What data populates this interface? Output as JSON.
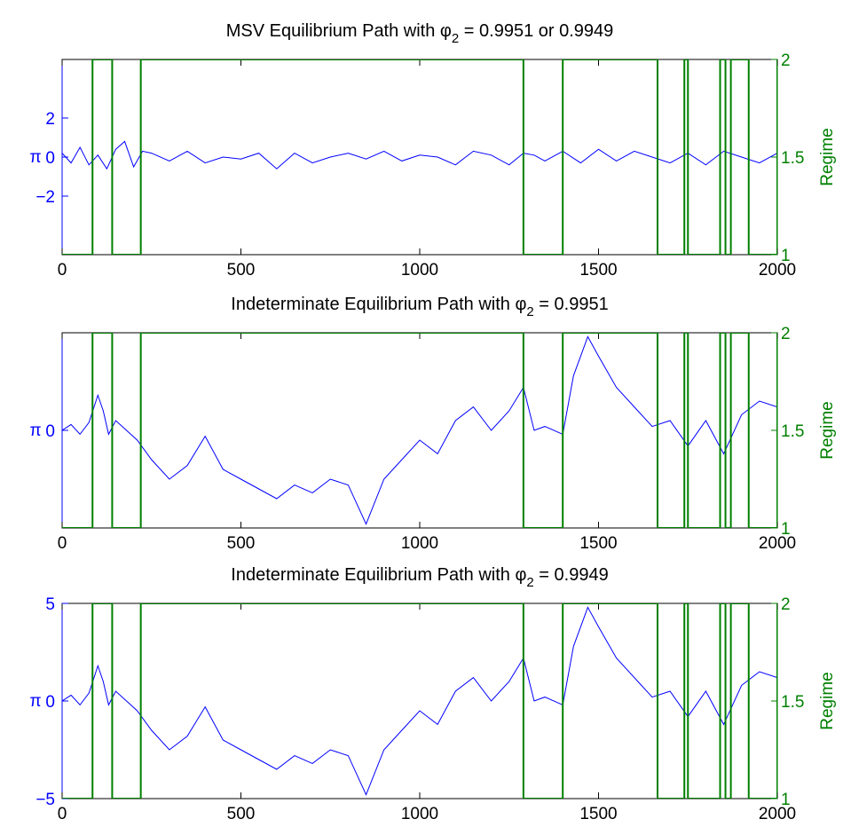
{
  "figure": {
    "colors": {
      "series": "#0000ff",
      "regime": "#008000",
      "axis": "#000000"
    }
  },
  "chart_data": [
    {
      "type": "line",
      "title": {
        "text": "MSV Equilibrium Path with ",
        "sym": "φ",
        "sub": "2",
        "rest": " = 0.9951 or 0.9949"
      },
      "xlim": [
        0,
        2000
      ],
      "x_ticks": [
        "0",
        "500",
        "1000",
        "1500",
        "2000"
      ],
      "ylabel_left": "π",
      "ylim_left": [
        -5,
        5
      ],
      "y_ticks_left": [
        {
          "v": 2,
          "label": "2"
        },
        {
          "v": 0,
          "label": "0"
        },
        {
          "v": -2,
          "label": "−2"
        }
      ],
      "ylabel_right": "Regime",
      "ylim_right": [
        1,
        2
      ],
      "y_ticks_right": [
        {
          "v": 2,
          "label": "2"
        },
        {
          "v": 1.5,
          "label": "1.5"
        },
        {
          "v": 1,
          "label": "1"
        }
      ],
      "series": [
        {
          "axis": "left",
          "style": "line",
          "x": [
            0,
            25,
            50,
            75,
            100,
            125,
            150,
            175,
            200,
            225,
            250,
            300,
            350,
            400,
            450,
            500,
            550,
            600,
            650,
            700,
            750,
            800,
            850,
            900,
            950,
            1000,
            1050,
            1100,
            1150,
            1200,
            1250,
            1290,
            1320,
            1350,
            1400,
            1450,
            1500,
            1550,
            1600,
            1650,
            1700,
            1750,
            1800,
            1850,
            1900,
            1950,
            2000
          ],
          "y": [
            0.2,
            -0.3,
            0.5,
            -0.4,
            0.1,
            -0.6,
            0.4,
            0.8,
            -0.5,
            0.3,
            0.2,
            -0.2,
            0.3,
            -0.3,
            0.0,
            -0.1,
            0.2,
            -0.6,
            0.2,
            -0.3,
            0.0,
            0.2,
            -0.1,
            0.3,
            -0.2,
            0.1,
            0.0,
            -0.4,
            0.3,
            0.1,
            -0.4,
            0.2,
            0.1,
            -0.2,
            0.3,
            -0.3,
            0.4,
            -0.2,
            0.3,
            0.0,
            -0.3,
            0.2,
            -0.4,
            0.3,
            0.0,
            -0.3,
            0.2
          ]
        },
        {
          "axis": "right",
          "style": "step",
          "x": [
            0,
            85,
            140,
            220,
            1290,
            1400,
            1665,
            1740,
            1750,
            1840,
            1855,
            1870,
            1920,
            2000
          ],
          "y": [
            1,
            2,
            1,
            2,
            1,
            2,
            1,
            2,
            1,
            2,
            1,
            2,
            1,
            2
          ]
        }
      ]
    },
    {
      "type": "line",
      "title": {
        "text": "Indeterminate Equilibrium Path with ",
        "sym": "φ",
        "sub": "2",
        "rest": " = 0.9951"
      },
      "xlim": [
        0,
        2000
      ],
      "x_ticks": [
        "0",
        "500",
        "1000",
        "1500",
        "2000"
      ],
      "ylabel_left": "π",
      "ylim_left": [
        -5,
        5
      ],
      "y_ticks_left": [
        {
          "v": 0,
          "label": "0"
        }
      ],
      "ylabel_right": "Regime",
      "ylim_right": [
        1,
        2
      ],
      "y_ticks_right": [
        {
          "v": 2,
          "label": "2"
        },
        {
          "v": 1.5,
          "label": "1.5"
        },
        {
          "v": 1,
          "label": "1"
        }
      ],
      "series": [
        {
          "axis": "left",
          "style": "line",
          "x": [
            0,
            25,
            50,
            75,
            100,
            115,
            130,
            150,
            180,
            210,
            250,
            300,
            350,
            400,
            450,
            500,
            550,
            600,
            650,
            700,
            750,
            800,
            850,
            900,
            950,
            1000,
            1050,
            1100,
            1150,
            1200,
            1250,
            1290,
            1320,
            1350,
            1400,
            1430,
            1470,
            1500,
            1550,
            1600,
            1650,
            1700,
            1750,
            1800,
            1850,
            1900,
            1950,
            2000
          ],
          "y": [
            0.0,
            0.3,
            -0.2,
            0.4,
            1.8,
            1.0,
            -0.2,
            0.5,
            0.0,
            -0.5,
            -1.5,
            -2.5,
            -1.8,
            -0.3,
            -2.0,
            -2.5,
            -3.0,
            -3.5,
            -2.8,
            -3.2,
            -2.5,
            -2.8,
            -4.8,
            -2.5,
            -1.5,
            -0.5,
            -1.2,
            0.5,
            1.2,
            0.0,
            1.0,
            2.2,
            0.0,
            0.2,
            -0.2,
            2.8,
            4.8,
            3.8,
            2.2,
            1.2,
            0.2,
            0.5,
            -0.8,
            0.5,
            -1.2,
            0.8,
            1.5,
            1.2
          ]
        },
        {
          "axis": "right",
          "style": "step",
          "x": [
            0,
            85,
            140,
            220,
            1290,
            1400,
            1665,
            1740,
            1750,
            1840,
            1855,
            1870,
            1920,
            2000
          ],
          "y": [
            1,
            2,
            1,
            2,
            1,
            2,
            1,
            2,
            1,
            2,
            1,
            2,
            1,
            2
          ]
        }
      ]
    },
    {
      "type": "line",
      "title": {
        "text": "Indeterminate Equilibrium Path with ",
        "sym": "φ",
        "sub": "2",
        "rest": " = 0.9949"
      },
      "xlim": [
        0,
        2000
      ],
      "x_ticks": [
        "0",
        "500",
        "1000",
        "1500",
        "2000"
      ],
      "ylabel_left": "π",
      "ylim_left": [
        -5,
        5
      ],
      "y_ticks_left": [
        {
          "v": 5,
          "label": "5"
        },
        {
          "v": 0,
          "label": "0"
        },
        {
          "v": -5,
          "label": "−5"
        }
      ],
      "ylabel_right": "Regime",
      "ylim_right": [
        1,
        2
      ],
      "y_ticks_right": [
        {
          "v": 2,
          "label": "2"
        },
        {
          "v": 1.5,
          "label": "1.5"
        },
        {
          "v": 1,
          "label": "1"
        }
      ],
      "series": [
        {
          "axis": "left",
          "style": "line",
          "x": [
            0,
            25,
            50,
            75,
            100,
            115,
            130,
            150,
            180,
            210,
            250,
            300,
            350,
            400,
            450,
            500,
            550,
            600,
            650,
            700,
            750,
            800,
            850,
            900,
            950,
            1000,
            1050,
            1100,
            1150,
            1200,
            1250,
            1290,
            1320,
            1350,
            1400,
            1430,
            1470,
            1500,
            1550,
            1600,
            1650,
            1700,
            1750,
            1800,
            1850,
            1900,
            1950,
            2000
          ],
          "y": [
            0.0,
            0.3,
            -0.2,
            0.4,
            1.8,
            1.0,
            -0.2,
            0.5,
            0.0,
            -0.5,
            -1.5,
            -2.5,
            -1.8,
            -0.3,
            -2.0,
            -2.5,
            -3.0,
            -3.5,
            -2.8,
            -3.2,
            -2.5,
            -2.8,
            -4.8,
            -2.5,
            -1.5,
            -0.5,
            -1.2,
            0.5,
            1.2,
            0.0,
            1.0,
            2.2,
            0.0,
            0.2,
            -0.2,
            2.8,
            4.8,
            3.8,
            2.2,
            1.2,
            0.2,
            0.5,
            -0.8,
            0.5,
            -1.2,
            0.8,
            1.5,
            1.2
          ]
        },
        {
          "axis": "right",
          "style": "step",
          "x": [
            0,
            85,
            140,
            220,
            1290,
            1400,
            1665,
            1740,
            1750,
            1840,
            1855,
            1870,
            1920,
            2000
          ],
          "y": [
            1,
            2,
            1,
            2,
            1,
            2,
            1,
            2,
            1,
            2,
            1,
            2,
            1,
            2
          ]
        }
      ]
    }
  ]
}
